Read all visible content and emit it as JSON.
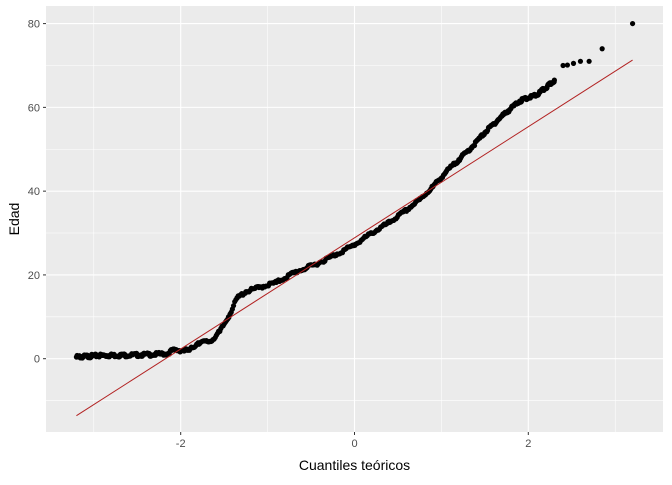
{
  "chart_data": {
    "type": "scatter",
    "subtype": "qq-plot",
    "title": "",
    "xlabel": "Cuantiles teóricos",
    "ylabel": "Edad",
    "xlim": [
      -3.55,
      3.55
    ],
    "ylim": [
      -17.5,
      84.2
    ],
    "x_ticks": [
      -2,
      0,
      2
    ],
    "x_tick_labels": [
      "-2",
      "0",
      "2"
    ],
    "y_ticks": [
      0,
      20,
      40,
      60,
      80
    ],
    "y_tick_labels": [
      "0",
      "20",
      "40",
      "60",
      "80"
    ],
    "grid": true,
    "legend": "none",
    "colors": {
      "panel_background": "#ebebeb",
      "grid_line": "#ffffff",
      "points": "#000000",
      "reference_line": "#b22222"
    },
    "reference_line": {
      "x": [
        -3.2,
        3.2
      ],
      "y": [
        -13.6,
        71.3
      ]
    },
    "anchors": [
      [
        -3.2,
        0.4
      ],
      [
        -2.9,
        0.8
      ],
      [
        -2.7,
        0.8
      ],
      [
        -2.5,
        0.9
      ],
      [
        -2.35,
        1.0
      ],
      [
        -2.15,
        1.2
      ],
      [
        -2.1,
        2.0
      ],
      [
        -1.9,
        2.0
      ],
      [
        -1.8,
        3.8
      ],
      [
        -1.65,
        4.2
      ],
      [
        -1.55,
        6.5
      ],
      [
        -1.45,
        10.0
      ],
      [
        -1.35,
        14.5
      ],
      [
        -1.25,
        16.0
      ],
      [
        -1.1,
        17.0
      ],
      [
        -0.9,
        18.2
      ],
      [
        -0.7,
        20.5
      ],
      [
        -0.45,
        22.5
      ],
      [
        -0.2,
        25.0
      ],
      [
        0.0,
        27.2
      ],
      [
        0.2,
        30.0
      ],
      [
        0.4,
        32.5
      ],
      [
        0.6,
        35.5
      ],
      [
        0.75,
        38.0
      ],
      [
        0.9,
        41.0
      ],
      [
        1.05,
        44.5
      ],
      [
        1.2,
        47.5
      ],
      [
        1.35,
        50.5
      ],
      [
        1.5,
        54.0
      ],
      [
        1.7,
        58.0
      ],
      [
        1.9,
        61.5
      ],
      [
        2.1,
        63.0
      ],
      [
        2.25,
        65.5
      ],
      [
        2.3,
        66.5
      ]
    ],
    "tail_points": [
      [
        2.4,
        70.0
      ],
      [
        2.45,
        70.1
      ],
      [
        2.52,
        70.5
      ],
      [
        2.6,
        71.0
      ],
      [
        2.7,
        71.0
      ],
      [
        2.85,
        74.0
      ],
      [
        3.2,
        80.0
      ]
    ],
    "n_dense_points": 520
  }
}
